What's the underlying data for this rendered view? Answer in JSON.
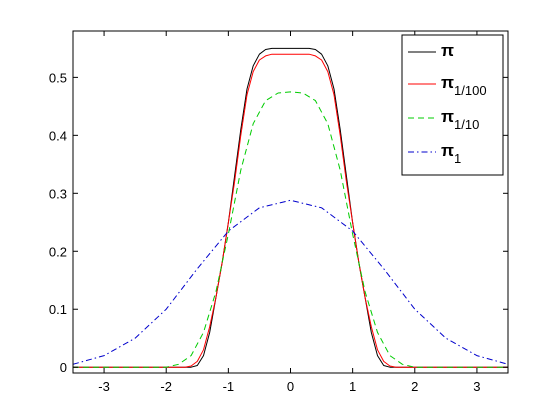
{
  "chart_data": {
    "type": "line",
    "title": "",
    "xlabel": "",
    "ylabel": "",
    "xlim": [
      -3.5,
      3.5
    ],
    "ylim": [
      -0.01,
      0.58
    ],
    "xticks": [
      -3,
      -2,
      -1,
      0,
      1,
      2,
      3
    ],
    "xtick_labels": [
      "-3",
      "-2",
      "-1",
      "0",
      "1",
      "2",
      "3"
    ],
    "yticks": [
      0,
      0.1,
      0.2,
      0.3,
      0.4,
      0.5
    ],
    "ytick_labels": [
      "0",
      "0.1",
      "0.2",
      "0.3",
      "0.4",
      "0.5"
    ],
    "grid": false,
    "legend_position": "top-right",
    "series": [
      {
        "name": "π",
        "legend_main": "π",
        "legend_sub": "",
        "color": "#000000",
        "dash": "solid",
        "x": [
          -3.5,
          -2,
          -1.6,
          -1.5,
          -1.4,
          -1.3,
          -1.2,
          -1.1,
          -1,
          -0.9,
          -0.8,
          -0.7,
          -0.6,
          -0.5,
          -0.4,
          -0.3,
          -0.2,
          0,
          0.2,
          0.3,
          0.4,
          0.5,
          0.6,
          0.7,
          0.8,
          0.9,
          1,
          1.1,
          1.2,
          1.3,
          1.4,
          1.5,
          1.6,
          2,
          3.5
        ],
        "y": [
          0,
          0,
          0.0,
          0.003,
          0.02,
          0.06,
          0.12,
          0.18,
          0.25,
          0.33,
          0.41,
          0.48,
          0.52,
          0.54,
          0.548,
          0.55,
          0.55,
          0.55,
          0.55,
          0.55,
          0.548,
          0.54,
          0.52,
          0.48,
          0.41,
          0.33,
          0.25,
          0.18,
          0.12,
          0.06,
          0.02,
          0.003,
          0.0,
          0,
          0
        ]
      },
      {
        "name": "π1/100",
        "legend_main": "π",
        "legend_sub": "1/100",
        "color": "#ff0000",
        "dash": "solid",
        "x": [
          -3.5,
          -2,
          -1.7,
          -1.6,
          -1.5,
          -1.4,
          -1.3,
          -1.2,
          -1.1,
          -1,
          -0.9,
          -0.8,
          -0.7,
          -0.6,
          -0.5,
          -0.4,
          -0.3,
          -0.2,
          0,
          0.2,
          0.3,
          0.4,
          0.5,
          0.6,
          0.7,
          0.8,
          0.9,
          1,
          1.1,
          1.2,
          1.3,
          1.4,
          1.5,
          1.6,
          1.7,
          2,
          3.5
        ],
        "y": [
          0,
          0,
          0.0,
          0.002,
          0.01,
          0.03,
          0.07,
          0.12,
          0.18,
          0.25,
          0.32,
          0.4,
          0.47,
          0.51,
          0.53,
          0.537,
          0.54,
          0.54,
          0.54,
          0.54,
          0.54,
          0.537,
          0.53,
          0.51,
          0.47,
          0.4,
          0.32,
          0.25,
          0.18,
          0.12,
          0.07,
          0.03,
          0.01,
          0.002,
          0.0,
          0,
          0
        ]
      },
      {
        "name": "π1/10",
        "legend_main": "π",
        "legend_sub": "1/10",
        "color": "#00cc00",
        "dash": "dashed",
        "x": [
          -3.5,
          -2.0,
          -1.8,
          -1.6,
          -1.4,
          -1.2,
          -1.0,
          -0.8,
          -0.6,
          -0.4,
          -0.2,
          0,
          0.2,
          0.4,
          0.6,
          0.8,
          1.0,
          1.2,
          1.4,
          1.6,
          1.8,
          2.0,
          3.5
        ],
        "y": [
          0,
          0.0,
          0.005,
          0.02,
          0.06,
          0.13,
          0.23,
          0.34,
          0.42,
          0.46,
          0.473,
          0.475,
          0.473,
          0.46,
          0.42,
          0.34,
          0.23,
          0.13,
          0.06,
          0.02,
          0.005,
          0.0,
          0
        ]
      },
      {
        "name": "π1",
        "legend_main": "π",
        "legend_sub": "1",
        "color": "#0000cc",
        "dash": "dashdot",
        "x": [
          -3.5,
          -3.0,
          -2.5,
          -2.0,
          -1.5,
          -1.0,
          -0.5,
          0,
          0.5,
          1.0,
          1.5,
          2.0,
          2.5,
          3.0,
          3.5
        ],
        "y": [
          0.005,
          0.02,
          0.05,
          0.1,
          0.17,
          0.235,
          0.275,
          0.288,
          0.275,
          0.235,
          0.17,
          0.1,
          0.05,
          0.02,
          0.005
        ]
      }
    ]
  }
}
